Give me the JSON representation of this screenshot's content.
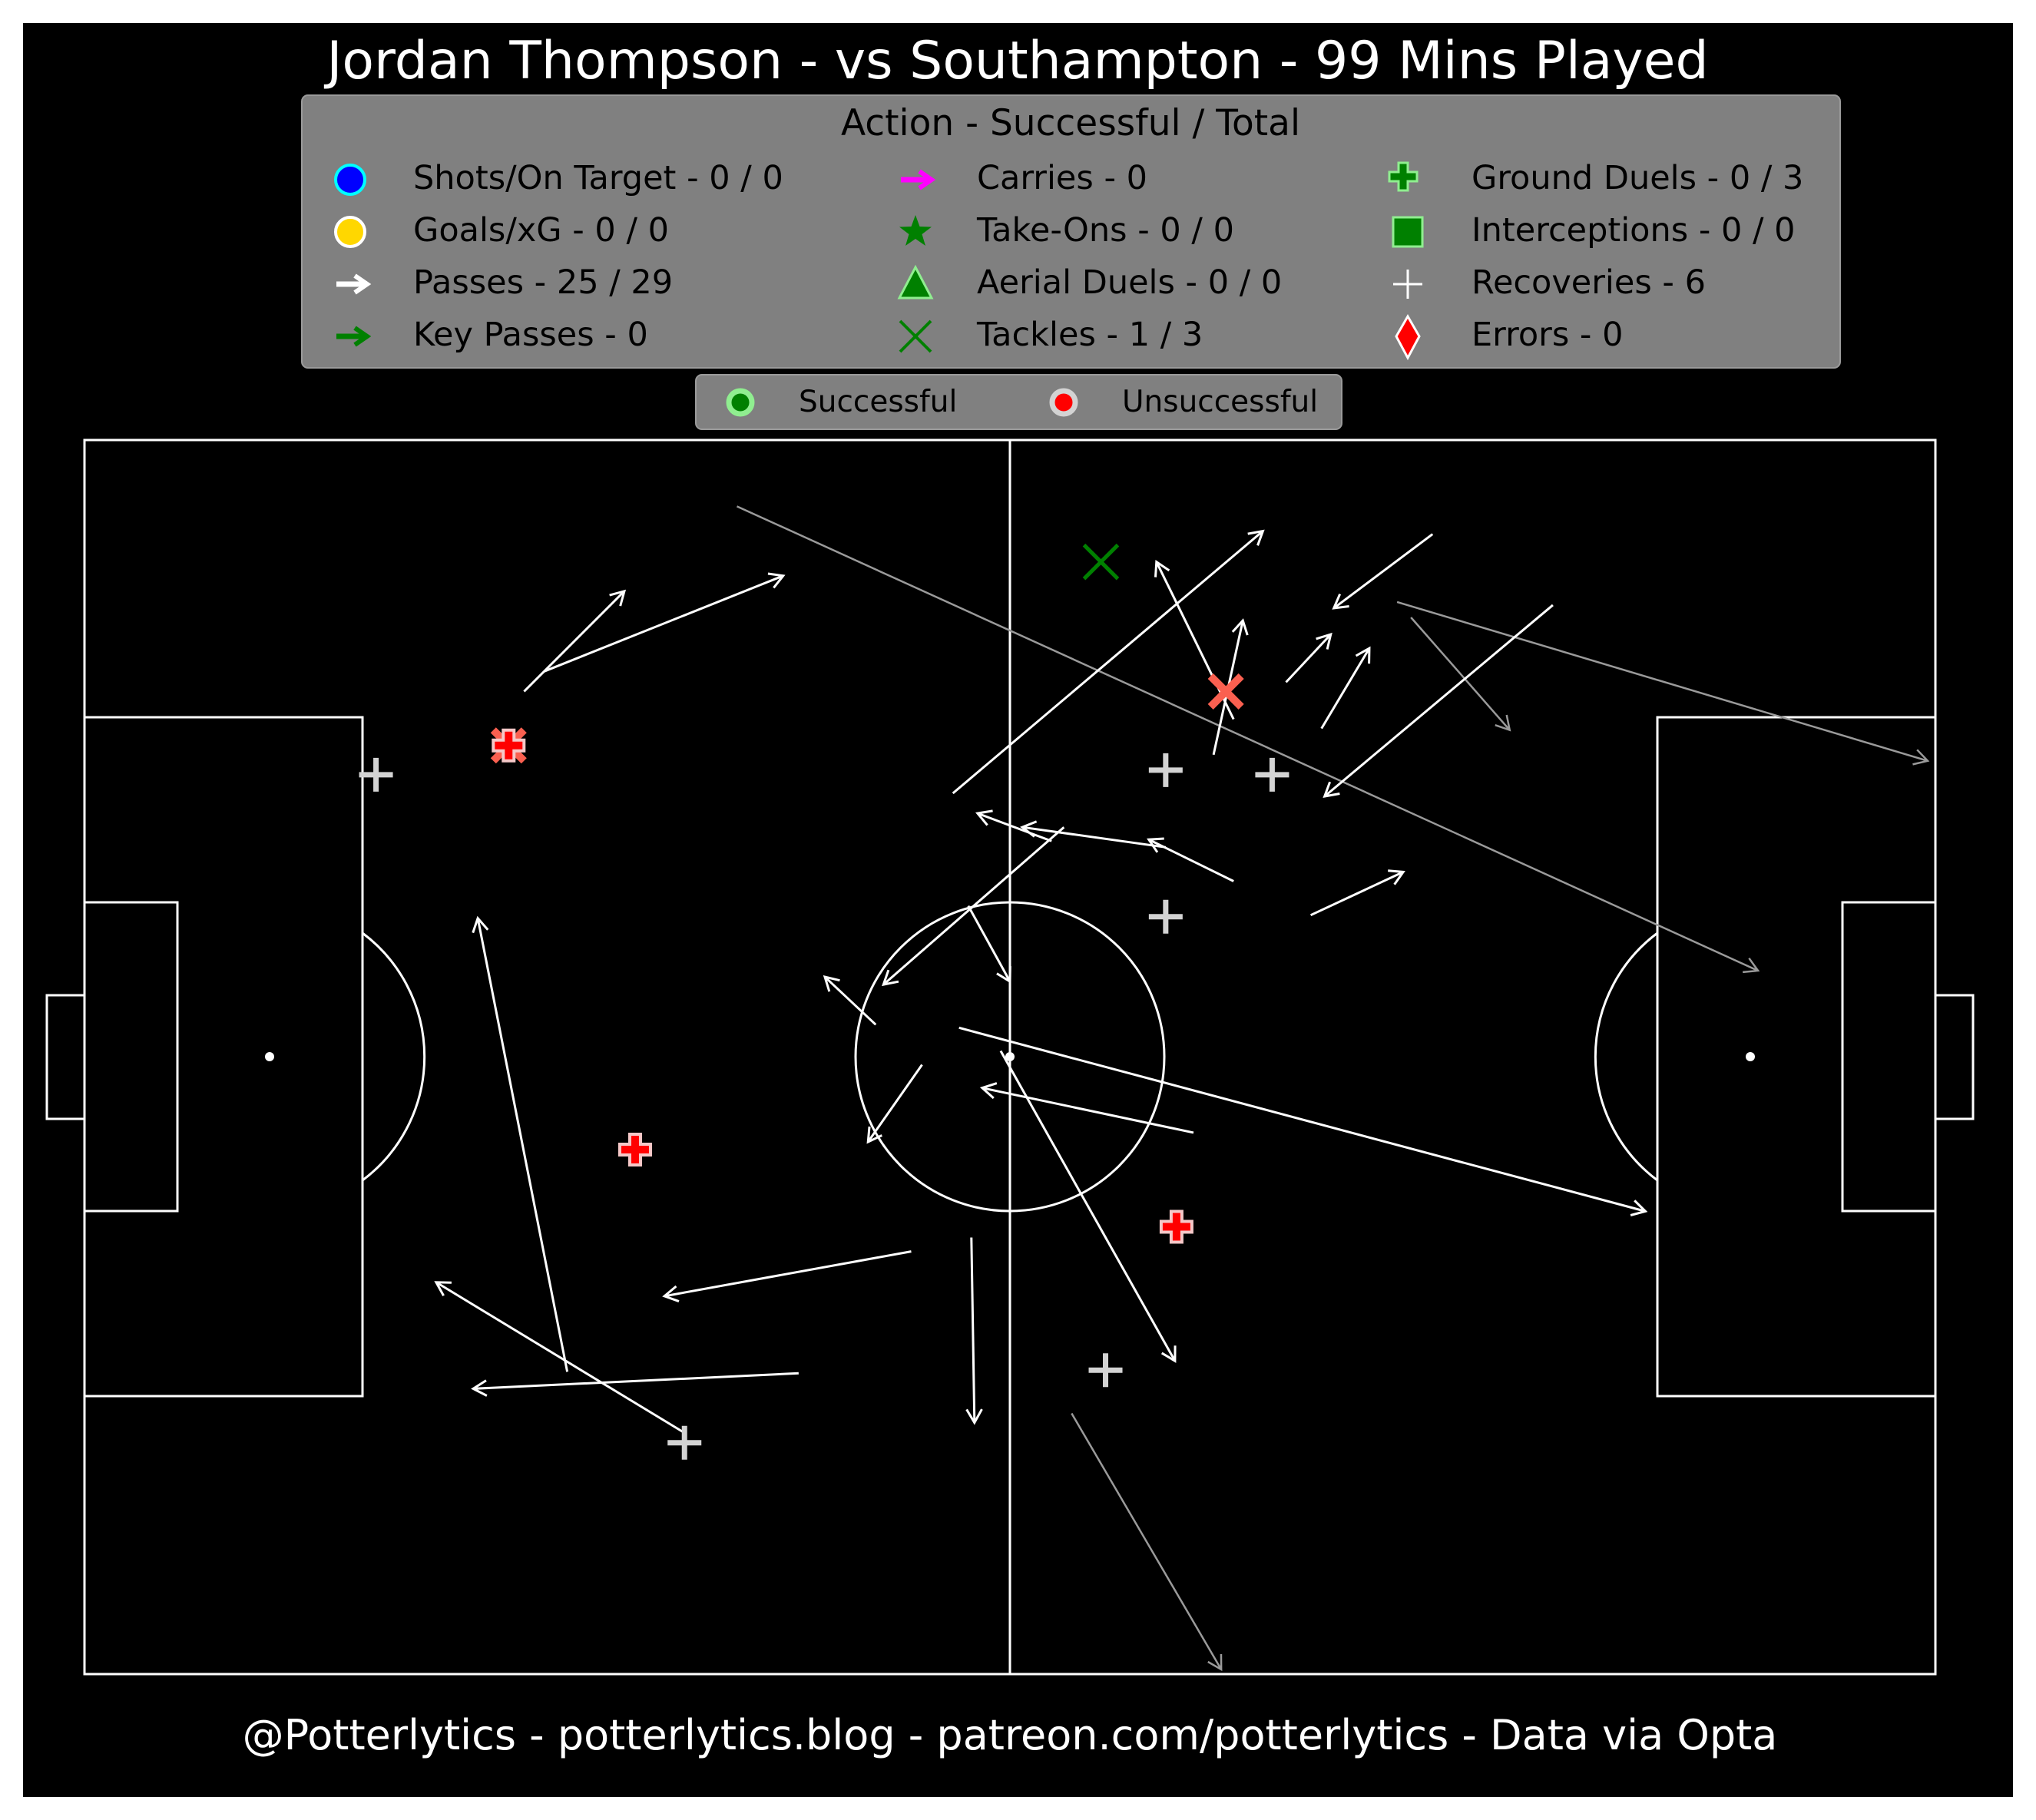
{
  "title": "Jordan Thompson - vs Southampton - 99 Mins Played",
  "footer": "@Potterlytics - potterlytics.blog - patreon.com/potterlytics - Data via Opta",
  "colors": {
    "background": "#000000",
    "frame": "#ffffff",
    "legend_bg": "#808080",
    "pitch_lines": "#ffffff",
    "pass_success": "#ffffff",
    "pass_fail": "#9a9a9a",
    "unsuccessful": "#ff0000",
    "successful_marker": "#90ee90",
    "tackle_fail": "#fa6050",
    "tackle_success": "#008000",
    "recovery": "#d3d3d3"
  },
  "legend": {
    "title": "Action - Successful / Total",
    "items": [
      {
        "label": "Shots/On Target - 0 / 0",
        "icon": "blue-circle-icon"
      },
      {
        "label": "Goals/xG - 0 / 0",
        "icon": "gold-circle-icon"
      },
      {
        "label": "Passes - 25 / 29",
        "icon": "white-arrow-icon"
      },
      {
        "label": "Key Passes - 0",
        "icon": "green-arrow-icon"
      },
      {
        "label": "Carries - 0",
        "icon": "magenta-arrow-icon"
      },
      {
        "label": "Take-Ons - 0 / 0",
        "icon": "green-star-icon"
      },
      {
        "label": "Aerial Duels - 0 / 0",
        "icon": "green-triangle-icon"
      },
      {
        "label": "Tackles - 1 / 3",
        "icon": "green-x-icon"
      },
      {
        "label": "Ground Duels - 0 / 3",
        "icon": "green-plus-icon"
      },
      {
        "label": "Interceptions - 0 / 0",
        "icon": "green-square-icon"
      },
      {
        "label": "Recoveries - 6",
        "icon": "white-plus-icon"
      },
      {
        "label": "Errors - 0",
        "icon": "red-diamond-icon"
      }
    ]
  },
  "outcome_legend": {
    "successful": "Successful",
    "unsuccessful": "Unsuccessful"
  },
  "chart_data": {
    "type": "scatter",
    "pitch": {
      "length": 120,
      "width": 80
    },
    "grid": false,
    "passes": [
      {
        "x1": 28.5,
        "y1": 63.7,
        "x2": 35.0,
        "y2": 70.2,
        "success": true
      },
      {
        "x1": 29.8,
        "y1": 65.0,
        "x2": 45.3,
        "y2": 71.2,
        "success": true
      },
      {
        "x1": 42.3,
        "y1": 75.7,
        "x2": 108.5,
        "y2": 45.6,
        "success": false
      },
      {
        "x1": 56.3,
        "y1": 57.1,
        "x2": 76.4,
        "y2": 74.1,
        "success": true
      },
      {
        "x1": 87.4,
        "y1": 73.9,
        "x2": 81.0,
        "y2": 69.1,
        "success": true
      },
      {
        "x1": 85.1,
        "y1": 69.5,
        "x2": 119.5,
        "y2": 59.2,
        "success": false
      },
      {
        "x1": 86.0,
        "y1": 68.5,
        "x2": 92.4,
        "y2": 61.2,
        "success": false
      },
      {
        "x1": 95.2,
        "y1": 69.3,
        "x2": 80.4,
        "y2": 56.9,
        "success": true
      },
      {
        "x1": 80.2,
        "y1": 61.3,
        "x2": 83.3,
        "y2": 66.5,
        "success": true
      },
      {
        "x1": 77.9,
        "y1": 64.3,
        "x2": 80.8,
        "y2": 67.4,
        "success": true
      },
      {
        "x1": 74.5,
        "y1": 61.9,
        "x2": 69.5,
        "y2": 72.1,
        "success": true
      },
      {
        "x1": 73.2,
        "y1": 59.6,
        "x2": 75.1,
        "y2": 68.3,
        "success": true
      },
      {
        "x1": 62.7,
        "y1": 54.0,
        "x2": 57.9,
        "y2": 55.8,
        "success": true
      },
      {
        "x1": 70.1,
        "y1": 53.6,
        "x2": 60.8,
        "y2": 54.9,
        "success": true
      },
      {
        "x1": 63.5,
        "y1": 54.9,
        "x2": 51.8,
        "y2": 44.7,
        "success": true
      },
      {
        "x1": 74.5,
        "y1": 51.4,
        "x2": 69.0,
        "y2": 54.1,
        "success": true
      },
      {
        "x1": 79.5,
        "y1": 49.2,
        "x2": 85.5,
        "y2": 52.0,
        "success": true
      },
      {
        "x1": 57.3,
        "y1": 49.8,
        "x2": 60.0,
        "y2": 44.9,
        "success": true
      },
      {
        "x1": 56.7,
        "y1": 41.9,
        "x2": 101.2,
        "y2": 30.0,
        "success": true
      },
      {
        "x1": 54.3,
        "y1": 39.5,
        "x2": 50.8,
        "y2": 34.5,
        "success": true
      },
      {
        "x1": 59.4,
        "y1": 40.4,
        "x2": 70.7,
        "y2": 20.3,
        "success": true
      },
      {
        "x1": 53.6,
        "y1": 27.4,
        "x2": 37.6,
        "y2": 24.5,
        "success": true
      },
      {
        "x1": 71.9,
        "y1": 35.1,
        "x2": 58.2,
        "y2": 38.0,
        "success": true
      },
      {
        "x1": 51.3,
        "y1": 42.1,
        "x2": 48.0,
        "y2": 45.2,
        "success": true
      },
      {
        "x1": 57.5,
        "y1": 28.3,
        "x2": 57.7,
        "y2": 16.3,
        "success": true
      },
      {
        "x1": 46.3,
        "y1": 19.5,
        "x2": 25.2,
        "y2": 18.5,
        "success": true
      },
      {
        "x1": 38.8,
        "y1": 15.7,
        "x2": 22.8,
        "y2": 25.4,
        "success": true
      },
      {
        "x1": 31.3,
        "y1": 19.6,
        "x2": 25.5,
        "y2": 49.0,
        "success": true
      },
      {
        "x1": 64.0,
        "y1": 16.9,
        "x2": 73.7,
        "y2": 0.3,
        "success": false
      }
    ],
    "tackles": [
      {
        "x": 65.9,
        "y": 72.1,
        "success": true
      },
      {
        "x": 74.0,
        "y": 63.7,
        "success": false
      },
      {
        "x": 27.5,
        "y": 60.2,
        "success": false
      }
    ],
    "ground_duels": [
      {
        "x": 27.5,
        "y": 60.2,
        "success": false
      },
      {
        "x": 35.7,
        "y": 34.0,
        "success": false
      },
      {
        "x": 70.8,
        "y": 29.0,
        "success": false
      }
    ],
    "recoveries": [
      {
        "x": 18.9,
        "y": 58.3
      },
      {
        "x": 70.1,
        "y": 58.6
      },
      {
        "x": 77.0,
        "y": 58.3
      },
      {
        "x": 70.1,
        "y": 49.1
      },
      {
        "x": 66.2,
        "y": 19.7
      },
      {
        "x": 38.9,
        "y": 15.0
      }
    ]
  }
}
